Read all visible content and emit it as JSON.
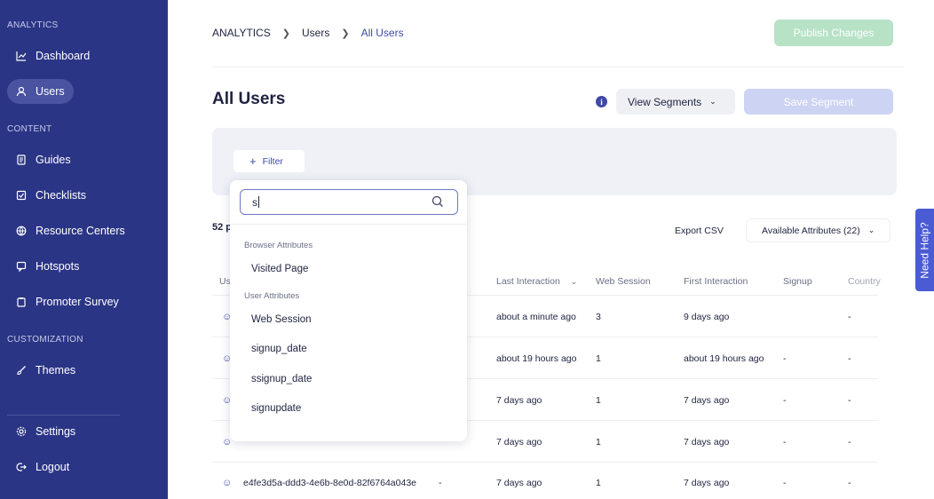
{
  "sidebar": {
    "sections": {
      "analytics": "ANALYTICS",
      "content": "CONTENT",
      "customization": "CUSTOMIZATION"
    },
    "items": {
      "dashboard": "Dashboard",
      "users": "Users",
      "guides": "Guides",
      "checklists": "Checklists",
      "resource_centers": "Resource Centers",
      "hotspots": "Hotspots",
      "promoter_survey": "Promoter Survey",
      "themes": "Themes",
      "settings": "Settings",
      "logout": "Logout"
    },
    "active_item": "Users",
    "bg_color": "#2b3585"
  },
  "header": {
    "breadcrumb": [
      "ANALYTICS",
      "Users",
      "All Users"
    ],
    "publish_label": "Publish Changes",
    "title": "All Users",
    "view_segments_label": "View Segments",
    "save_segment_label": "Save Segment"
  },
  "filter": {
    "button_label": "Filter"
  },
  "table": {
    "count_text": "52 p",
    "export_label": "Export CSV",
    "available_attributes_label": "Available Attributes (22)",
    "columns": {
      "user": "Us",
      "last_interaction": "Last Interaction",
      "web_session": "Web Session",
      "first_interaction": "First Interaction",
      "signup": "Signup",
      "country": "Country"
    },
    "rows": [
      {
        "id": "",
        "dash": "",
        "last": "about a minute ago",
        "web": "3",
        "first": "9 days ago",
        "signup": "",
        "country": "-"
      },
      {
        "id": "",
        "dash": "",
        "last": "about 19 hours ago",
        "web": "1",
        "first": "about 19 hours ago",
        "signup": "-",
        "country": "-"
      },
      {
        "id": "",
        "dash": "",
        "last": "7 days ago",
        "web": "1",
        "first": "7 days ago",
        "signup": "-",
        "country": "-"
      },
      {
        "id": "",
        "dash": "",
        "last": "7 days ago",
        "web": "1",
        "first": "7 days ago",
        "signup": "-",
        "country": "-"
      },
      {
        "id": "e4fe3d5a-ddd3-4e6b-8e0d-82f6764a043e",
        "dash": "-",
        "last": "7 days ago",
        "web": "1",
        "first": "7 days ago",
        "signup": "-",
        "country": "-"
      }
    ]
  },
  "dropdown": {
    "search_value": "s",
    "groups": {
      "browser": "Browser Attributes",
      "user": "User Attributes"
    },
    "browser_options": [
      "Visited Page"
    ],
    "user_options": [
      "Web Session",
      "signup_date",
      "ssignup_date",
      "signupdate"
    ]
  },
  "help_tab_label": "Need Help?",
  "colors": {
    "accent": "#3f4aa8",
    "publish_disabled": "#b7e2c6",
    "save_disabled": "#cdd3f3",
    "help_tab": "#4a5bd4"
  }
}
